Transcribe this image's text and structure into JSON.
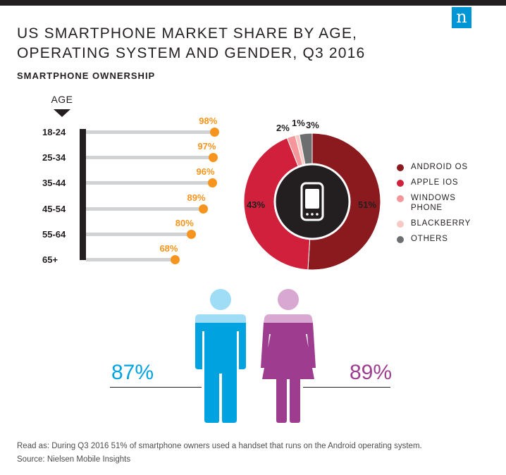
{
  "header": {
    "logo": "n",
    "title_line1": "US SMARTPHONE MARKET SHARE BY AGE,",
    "title_line2": "OPERATING SYSTEM AND GENDER, Q3 2016",
    "subtitle": "SMARTPHONE OWNERSHIP"
  },
  "colors": {
    "orange": "#f7941d",
    "android": "#8b1a1f",
    "ios": "#d0203c",
    "windows": "#f4969a",
    "blackberry": "#f8c9c4",
    "others": "#6d6e70",
    "male": "#00a3e0",
    "male_head": "#9fdcf5",
    "female": "#9e3d8f",
    "female_head": "#d8a8d3"
  },
  "chart_data": [
    {
      "type": "bar",
      "title": "Smartphone ownership by age",
      "axis_label": "AGE",
      "categories": [
        "18-24",
        "25-34",
        "35-44",
        "45-54",
        "55-64",
        "65+"
      ],
      "values": [
        98,
        97,
        96,
        89,
        80,
        68
      ],
      "value_labels": [
        "98%",
        "97%",
        "96%",
        "89%",
        "80%",
        "68%"
      ],
      "unit": "%",
      "xlim": [
        0,
        100
      ]
    },
    {
      "type": "pie",
      "title": "Market share by operating system",
      "categories": [
        "ANDROID OS",
        "APPLE IOS",
        "WINDOWS PHONE",
        "BLACKBERRY",
        "OTHERS"
      ],
      "legend_lines": [
        [
          "ANDROID OS"
        ],
        [
          "APPLE IOS"
        ],
        [
          "WINDOWS",
          "PHONE"
        ],
        [
          "BLACKBERRY"
        ],
        [
          "OTHERS"
        ]
      ],
      "values": [
        51,
        43,
        2,
        1,
        3
      ],
      "value_labels": [
        "51%",
        "43%",
        "2%",
        "1%",
        "3%"
      ],
      "legend_position": "right"
    },
    {
      "type": "bar",
      "title": "Smartphone ownership by gender",
      "categories": [
        "Male",
        "Female"
      ],
      "values": [
        87,
        89
      ],
      "value_labels": [
        "87%",
        "89%"
      ]
    }
  ],
  "footer": {
    "read_as": "Read as: During Q3 2016 51% of smartphone owners used a handset that runs on the Android operating system.",
    "source": "Source: Nielsen Mobile Insights"
  }
}
